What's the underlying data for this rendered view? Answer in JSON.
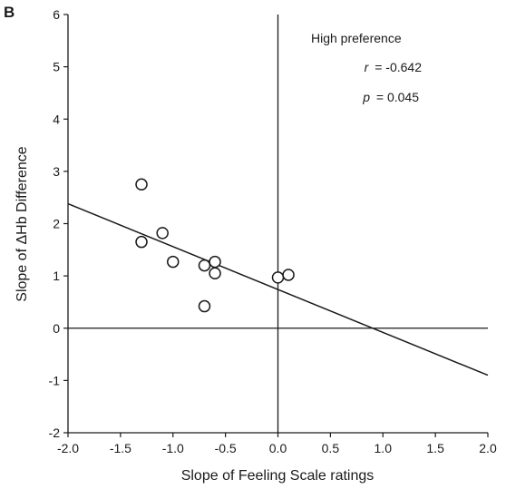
{
  "panel_label": "B",
  "chart_data": {
    "type": "scatter",
    "xlabel": "Slope of Feeling Scale ratings",
    "ylabel": "Slope of ΔHb Difference",
    "xlim": [
      -2.0,
      2.0
    ],
    "ylim": [
      -2,
      6
    ],
    "xticks": [
      "-2.0",
      "-1.5",
      "-1.0",
      "-0.5",
      "0.0",
      "0.5",
      "1.0",
      "1.5",
      "2.0"
    ],
    "yticks": [
      "-2",
      "-1",
      "0",
      "1",
      "2",
      "3",
      "4",
      "5",
      "6"
    ],
    "points": [
      {
        "x": -1.3,
        "y": 2.75
      },
      {
        "x": -1.3,
        "y": 1.65
      },
      {
        "x": -1.1,
        "y": 1.82
      },
      {
        "x": -1.0,
        "y": 1.27
      },
      {
        "x": -0.7,
        "y": 1.2
      },
      {
        "x": -0.6,
        "y": 1.27
      },
      {
        "x": -0.6,
        "y": 1.05
      },
      {
        "x": -0.7,
        "y": 0.42
      },
      {
        "x": 0.0,
        "y": 0.97
      },
      {
        "x": 0.1,
        "y": 1.02
      }
    ],
    "regression_line": {
      "x": [
        -2.0,
        2.0
      ],
      "y": [
        2.38,
        -0.9
      ]
    },
    "reference_lines": {
      "x": 0,
      "y": 0
    },
    "annotation": {
      "title": "High preference",
      "r_symbol": "r",
      "r_value": "= -0.642",
      "p_symbol": "p",
      "p_value": "= 0.045"
    }
  }
}
